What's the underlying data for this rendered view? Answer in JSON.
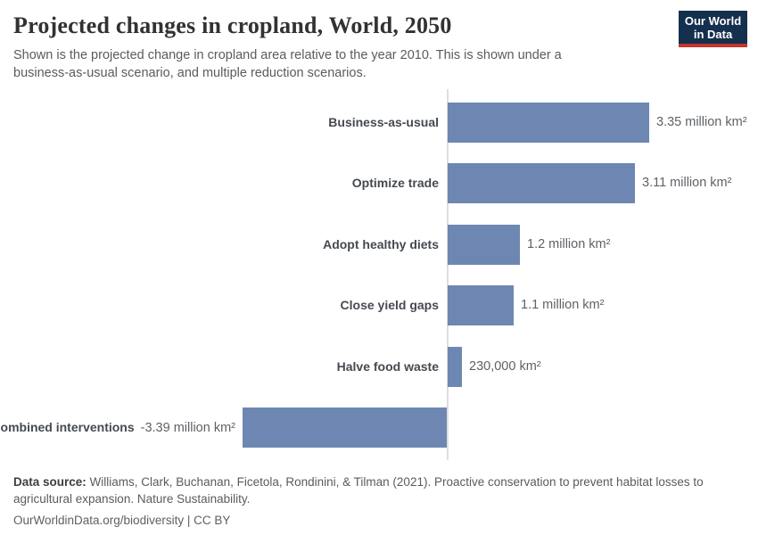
{
  "header": {
    "title": "Projected changes in cropland, World, 2050",
    "subtitle": "Shown is the projected change in cropland area relative to the year 2010. This is shown under a business-as-usual scenario, and multiple reduction scenarios."
  },
  "logo": {
    "line1": "Our World",
    "line2": "in Data"
  },
  "chart_data": {
    "type": "bar",
    "orientation": "horizontal",
    "title": "Projected changes in cropland, World, 2050",
    "unit": "km²",
    "categories": [
      "Business-as-usual",
      "Optimize trade",
      "Adopt healthy diets",
      "Close yield gaps",
      "Halve food waste",
      "Combined interventions"
    ],
    "values_million_km2": [
      3.35,
      3.11,
      1.2,
      1.1,
      0.23,
      -3.39
    ],
    "value_labels": [
      "3.35 million km²",
      "3.11 million km²",
      "1.2 million km²",
      "1.1 million km²",
      "230,000 km²",
      "-3.39 million km²"
    ],
    "xlim": [
      -3.39,
      3.35
    ],
    "baseline": 0,
    "grid": false,
    "legend": "none",
    "zero_axis_line": true
  },
  "colors": {
    "bar": "#6d87b2",
    "axis_line": "#dedede",
    "logo_background": "#15304e",
    "logo_stripe": "#c5352c"
  },
  "footer": {
    "source_label": "Data source:",
    "source_text": "Williams, Clark, Buchanan, Ficetola, Rondinini, & Tilman (2021). Proactive conservation to prevent habitat losses to agricultural expansion. Nature Sustainability.",
    "link": "OurWorldinData.org/biodiversity",
    "separator": "|",
    "license": "CC BY"
  }
}
